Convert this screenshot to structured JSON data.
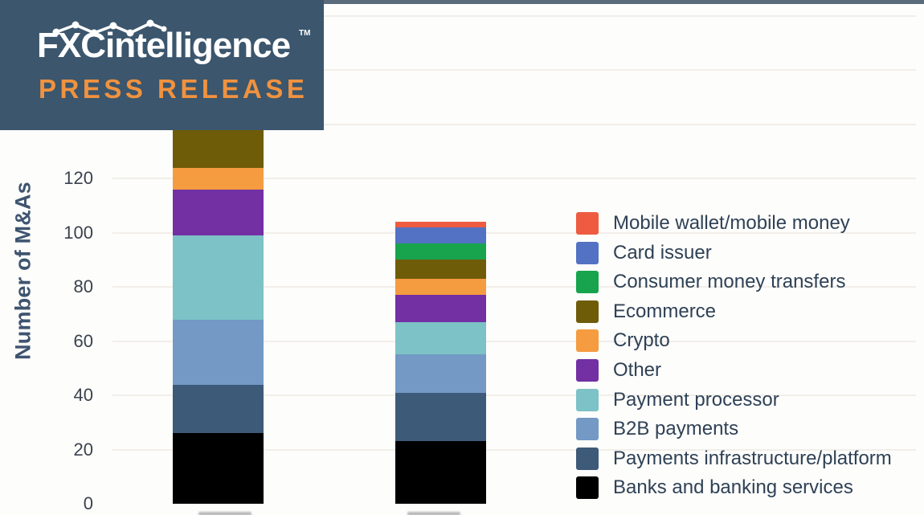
{
  "banner": {
    "logo_text": "FXCintelligence",
    "trademark": "TM",
    "subtitle": "PRESS RELEASE",
    "bg_color": "#3b566d",
    "subtitle_color": "#f0923f",
    "logo_color": "#ffffff"
  },
  "chart_data": {
    "type": "bar",
    "stacked": true,
    "title": "",
    "ylabel": "Number of M&As",
    "xlabel": "",
    "yticks": [
      0,
      20,
      40,
      60,
      80,
      100,
      120
    ],
    "ylim": [
      0,
      190
    ],
    "grid": true,
    "legend_position": "right",
    "categories": [
      "",
      ""
    ],
    "series": [
      {
        "name": "Banks and banking services",
        "color": "#000000",
        "values": [
          26,
          23
        ]
      },
      {
        "name": "Payments infrastructure/platform",
        "color": "#3d5a78",
        "values": [
          18,
          18
        ]
      },
      {
        "name": "B2B payments",
        "color": "#7399c4",
        "values": [
          24,
          14
        ]
      },
      {
        "name": "Payment processor",
        "color": "#7cc2c6",
        "values": [
          31,
          12
        ]
      },
      {
        "name": "Other",
        "color": "#7230a3",
        "values": [
          17,
          10
        ]
      },
      {
        "name": "Crypto",
        "color": "#f59b40",
        "values": [
          8,
          6
        ]
      },
      {
        "name": "Ecommerce",
        "color": "#6f5c08",
        "values": [
          18,
          7
        ]
      },
      {
        "name": "Consumer money transfers",
        "color": "#17a44d",
        "values": [
          0,
          6
        ]
      },
      {
        "name": "Card issuer",
        "color": "#5472c3",
        "values": [
          0,
          6
        ]
      },
      {
        "name": "Mobile wallet/mobile money",
        "color": "#ef5b40",
        "values": [
          0,
          2
        ]
      }
    ],
    "bar_totals_visible": [
      "138+ (top of bar hidden behind press-release banner)",
      "104"
    ],
    "notes": "Series listed bottom-to-top of stack; legend shown top-to-bottom in reverse order. Left bar's upper segments are cut off by the overlaid banner; x-axis category labels are cropped at the bottom edge of the image."
  }
}
